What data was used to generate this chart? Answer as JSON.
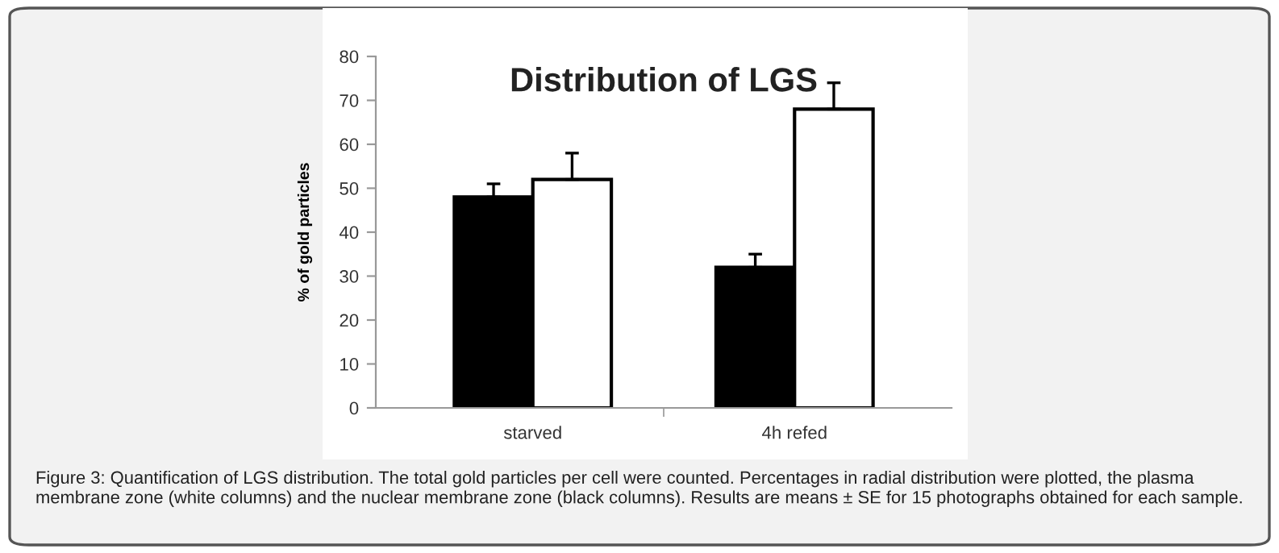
{
  "chart_data": {
    "type": "bar",
    "title": "Distribution of LGS",
    "ylabel": "% of gold particles",
    "categories": [
      "starved",
      "4h refed"
    ],
    "series": [
      {
        "color": "#000000",
        "values": [
          48,
          32
        ],
        "errors": [
          [
            48,
            51
          ],
          [
            32,
            35
          ]
        ]
      },
      {
        "color": "#ffffff",
        "values": [
          52,
          68
        ],
        "errors": [
          [
            52,
            58
          ],
          [
            68,
            74
          ]
        ]
      }
    ],
    "ylim": [
      0,
      80
    ],
    "yticks": [
      0,
      10,
      20,
      30,
      40,
      50,
      60,
      70,
      80
    ],
    "grid": false,
    "legend": false,
    "annotations": [
      "Figure 3: Quantification of LGS distribution. The total gold particles per cell were counted. Percentages in radial distribution were plotted, the plasma membrane zone (white columns) and the nuclear membrane zone (black columns). Results are means ± SE for 15 photographs obtained for each sample."
    ]
  }
}
